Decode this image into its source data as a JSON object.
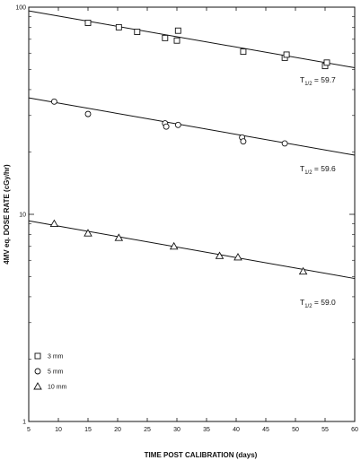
{
  "chart_data": {
    "type": "scatter",
    "title": "",
    "xlabel": "TIME POST CALIBRATION (days)",
    "ylabel": "4MV eq. DOSE RATE (cGy/hr)",
    "xlim": [
      5,
      60
    ],
    "ylim": [
      1,
      100
    ],
    "yscale": "log",
    "xticks": [
      5,
      10,
      15,
      20,
      25,
      30,
      35,
      40,
      45,
      50,
      55,
      60
    ],
    "yticks": [
      1,
      10,
      100
    ],
    "grid": false,
    "legend_position": "bottom-left",
    "series": [
      {
        "name": "3 mm",
        "marker": "square",
        "points": [
          [
            15,
            84
          ],
          [
            20.2,
            80
          ],
          [
            23.3,
            76
          ],
          [
            28,
            71
          ],
          [
            30,
            69
          ],
          [
            30.2,
            77
          ],
          [
            41.2,
            61
          ],
          [
            48.2,
            57
          ],
          [
            48.5,
            59
          ],
          [
            55,
            52
          ],
          [
            55.3,
            54
          ]
        ],
        "fit": [
          [
            5,
            96
          ],
          [
            60,
            51
          ]
        ],
        "half_life_label": "T",
        "half_life_sub": "1/2",
        "half_life_text": " = 59.7"
      },
      {
        "name": "5 mm",
        "marker": "circle",
        "points": [
          [
            9.3,
            35
          ],
          [
            15,
            30.5
          ],
          [
            28,
            27.5
          ],
          [
            28.2,
            26.5
          ],
          [
            30.2,
            27
          ],
          [
            41,
            23.5
          ],
          [
            41.2,
            22.5
          ],
          [
            48.2,
            22
          ]
        ],
        "fit": [
          [
            5,
            36.5
          ],
          [
            60,
            19.3
          ]
        ],
        "half_life_label": "T",
        "half_life_sub": "1/2",
        "half_life_text": " = 59.6"
      },
      {
        "name": "10 mm",
        "marker": "triangle",
        "points": [
          [
            9.3,
            9
          ],
          [
            15,
            8.1
          ],
          [
            20.2,
            7.7
          ],
          [
            29.5,
            7
          ],
          [
            37.2,
            6.3
          ],
          [
            40.3,
            6.2
          ],
          [
            51.3,
            5.3
          ]
        ],
        "fit": [
          [
            5,
            9.3
          ],
          [
            60,
            4.9
          ]
        ],
        "half_life_label": "T",
        "half_life_sub": "1/2",
        "half_life_text": " = 59.0"
      }
    ]
  }
}
